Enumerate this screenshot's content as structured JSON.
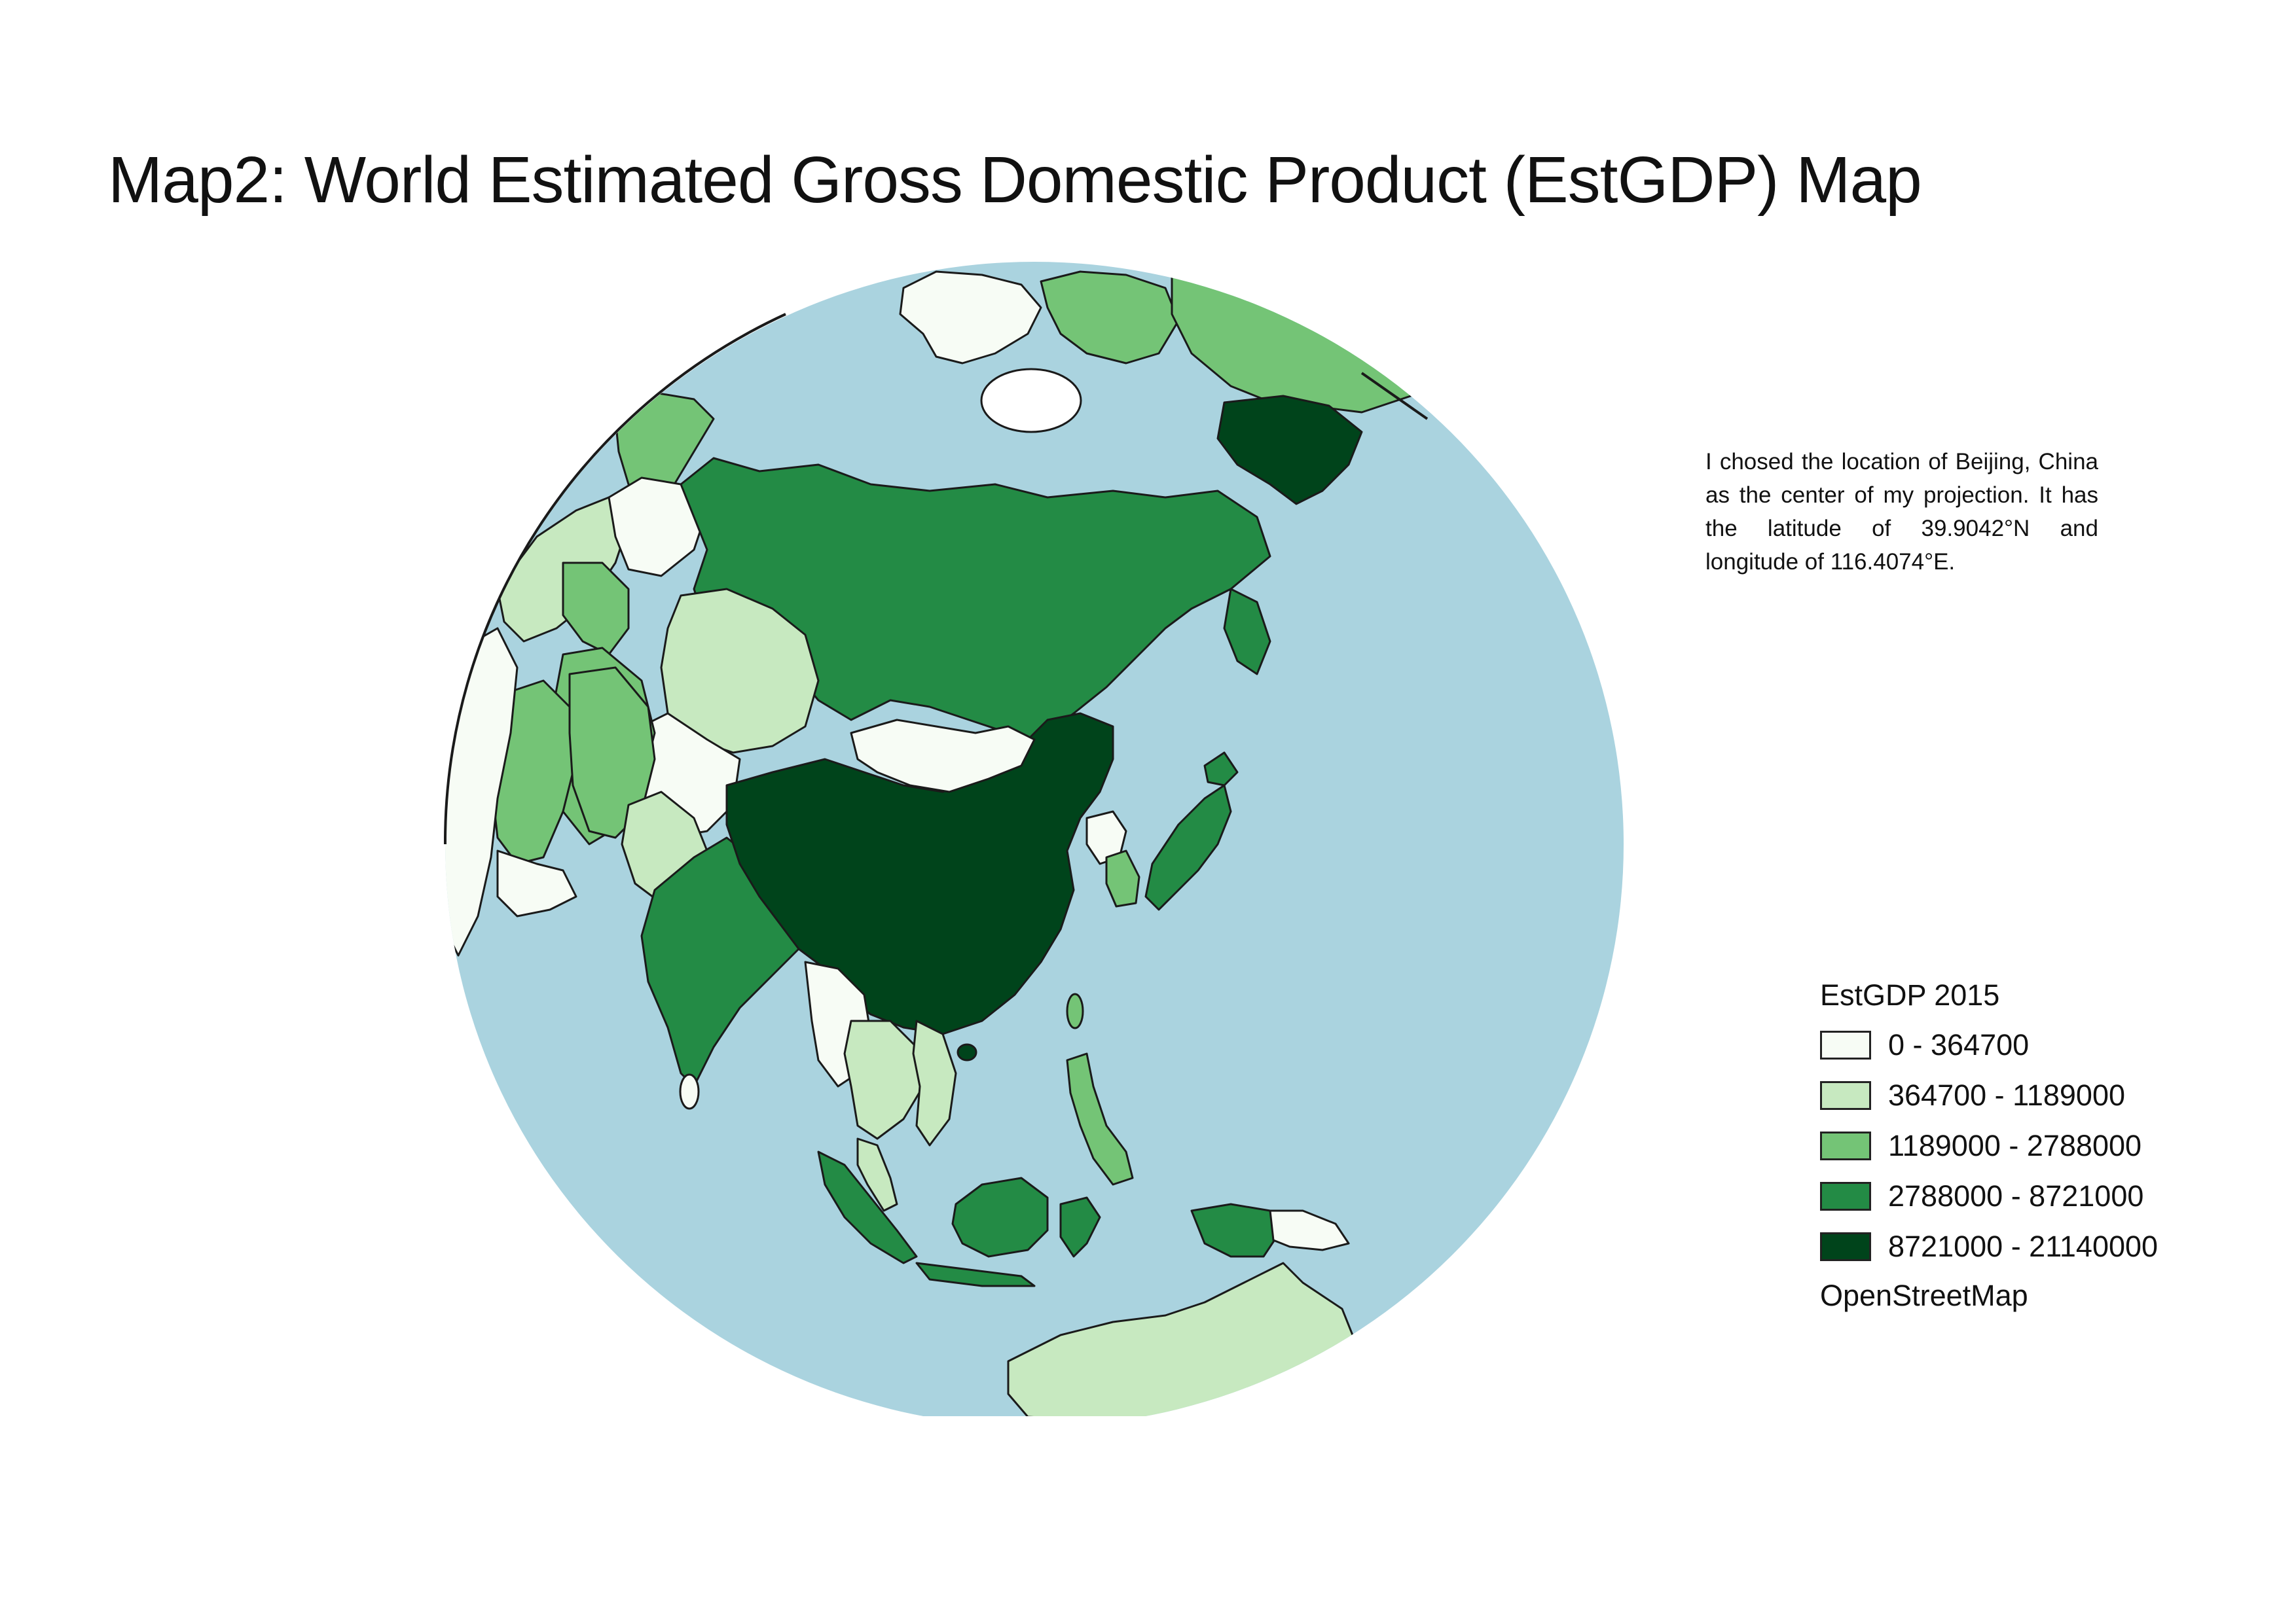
{
  "title": "Map2: World Estimated Gross Domestic Product (EstGDP) Map",
  "note": "I chosed the location of Beijing, China as the center of my projection. It has the latitude of 39.9042°N and longitude of 116.4074°E.",
  "legend": {
    "title": "EstGDP 2015",
    "classes": [
      {
        "label": "0 - 364700",
        "color": "#f7fcf5"
      },
      {
        "label": "364700 - 1189000",
        "color": "#c7e9c0"
      },
      {
        "label": "1189000 - 2788000",
        "color": "#74c476"
      },
      {
        "label": "2788000 - 8721000",
        "color": "#238b45"
      },
      {
        "label": "8721000 - 21140000",
        "color": "#00441b"
      }
    ],
    "source": "OpenStreetMap"
  },
  "map": {
    "projection_center": "Beijing, China",
    "ocean_color": "#aad3df",
    "regions": [
      {
        "name": "China",
        "class": 4
      },
      {
        "name": "Far East Russia",
        "class": 4
      },
      {
        "name": "Russia",
        "class": 3
      },
      {
        "name": "India",
        "class": 3
      },
      {
        "name": "Japan",
        "class": 3
      },
      {
        "name": "Indonesia",
        "class": 3
      },
      {
        "name": "Mongolia",
        "class": 0
      },
      {
        "name": "Kazakhstan",
        "class": 1
      },
      {
        "name": "Australia",
        "class": 1
      },
      {
        "name": "Alaska",
        "class": 2
      },
      {
        "name": "Greenland",
        "class": 0
      },
      {
        "name": "South Korea",
        "class": 2
      },
      {
        "name": "Thailand",
        "class": 1
      },
      {
        "name": "Saudi Arabia",
        "class": 2
      },
      {
        "name": "Iran",
        "class": 2
      }
    ]
  }
}
